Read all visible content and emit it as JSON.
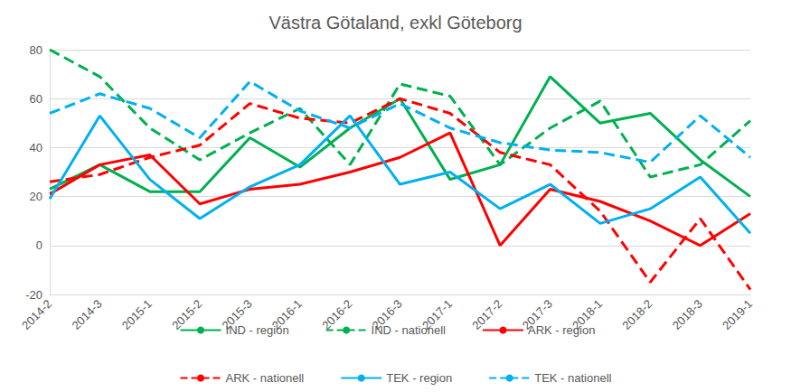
{
  "chart_data": {
    "type": "line",
    "title": "Västra Götaland, exkl Göteborg",
    "categories": [
      "2014-2",
      "2014-3",
      "2015-1",
      "2015-2",
      "2015-3",
      "2016-1",
      "2016-2",
      "2016-3",
      "2017-1",
      "2017-2",
      "2017-3",
      "2018-1",
      "2018-2",
      "2018-3",
      "2019-1"
    ],
    "series": [
      {
        "name": "IND - region",
        "color": "#00b050",
        "line_style": "solid",
        "values": [
          23,
          33,
          22,
          22,
          44,
          32,
          48,
          60,
          27,
          33,
          69,
          50,
          54,
          35,
          20
        ]
      },
      {
        "name": "IND - nationell",
        "color": "#00b050",
        "line_style": "dashed",
        "values": [
          80,
          69,
          48,
          35,
          46,
          56,
          33,
          66,
          61,
          33,
          48,
          59,
          28,
          33,
          51
        ]
      },
      {
        "name": "ARK - region",
        "color": "#ff0000",
        "line_style": "solid",
        "values": [
          21,
          33,
          37,
          17,
          23,
          25,
          30,
          36,
          46,
          0,
          23,
          18,
          10,
          0,
          13
        ]
      },
      {
        "name": "ARK - nationell",
        "color": "#ff0000",
        "line_style": "dashed",
        "values": [
          26,
          29,
          36,
          41,
          58,
          52,
          50,
          60,
          54,
          38,
          33,
          14,
          -15,
          11,
          -18
        ]
      },
      {
        "name": "TEK - region",
        "color": "#00b0f0",
        "line_style": "solid",
        "values": [
          19,
          53,
          27,
          11,
          24,
          33,
          53,
          25,
          30,
          15,
          25,
          9,
          15,
          28,
          5
        ]
      },
      {
        "name": "TEK - nationell",
        "color": "#00b0f0",
        "line_style": "dashed",
        "values": [
          54,
          62,
          56,
          44,
          67,
          55,
          48,
          58,
          48,
          42,
          39,
          38,
          34,
          53,
          36
        ]
      }
    ],
    "ylim": [
      -20,
      80
    ],
    "yticks": [
      -20,
      0,
      20,
      40,
      60,
      80
    ],
    "grid": true,
    "legend": "bottom"
  }
}
